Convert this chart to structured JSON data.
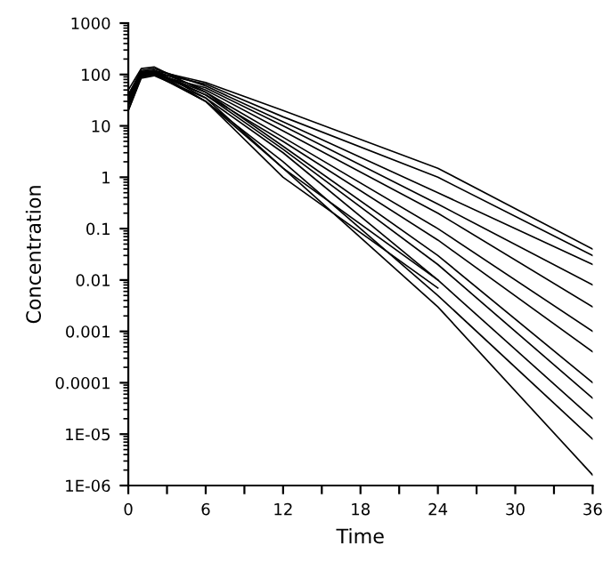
{
  "chart_data": {
    "type": "line",
    "xlabel": "Time",
    "ylabel": "Concentration",
    "log": "y",
    "grid": false,
    "legend": false,
    "marker": "none",
    "line_style": "solid",
    "xlim": [
      0,
      36
    ],
    "xticks": [
      0,
      {
        "value": 3,
        "label": null
      },
      6,
      {
        "value": 9,
        "label": null
      },
      12,
      {
        "value": 15,
        "label": null
      },
      18,
      {
        "value": 21,
        "label": null
      },
      24,
      {
        "value": 27,
        "label": null
      },
      30,
      {
        "value": 33,
        "label": null
      },
      36
    ],
    "ylim": [
      1e-06,
      1000
    ],
    "yticks": [
      {
        "value": 1e-06,
        "label": "1E-06"
      },
      {
        "value": 1e-05,
        "label": "1E-05"
      },
      {
        "value": 0.0001,
        "label": "0.0001"
      },
      {
        "value": 0.001,
        "label": "0.001"
      },
      {
        "value": 0.01,
        "label": "0.01"
      },
      {
        "value": 0.1,
        "label": "0.1"
      },
      1,
      10,
      100,
      1000
    ],
    "series": [
      {
        "color": "#000000",
        "x": [
          0,
          1,
          2,
          6,
          12,
          24,
          36
        ],
        "values": [
          30,
          110,
          120,
          70,
          20,
          1.5,
          0.04
        ]
      },
      {
        "color": "#000000",
        "x": [
          0,
          1,
          2,
          6,
          12,
          24,
          36
        ],
        "values": [
          25,
          100,
          110,
          65,
          15,
          1,
          0.03
        ]
      },
      {
        "color": "#000000",
        "x": [
          0,
          1,
          2,
          6,
          12,
          24,
          36
        ],
        "values": [
          40,
          120,
          130,
          60,
          12,
          0.5,
          0.02
        ]
      },
      {
        "color": "#000000",
        "x": [
          0,
          1,
          2,
          6,
          12,
          24,
          36
        ],
        "values": [
          20,
          90,
          100,
          55,
          10,
          0.3,
          0.008
        ]
      },
      {
        "color": "#000000",
        "x": [
          0,
          1,
          2,
          6,
          12,
          24,
          36
        ],
        "values": [
          35,
          110,
          120,
          50,
          8,
          0.2,
          0.003
        ]
      },
      {
        "color": "#000000",
        "x": [
          0,
          1,
          2,
          6,
          12,
          24,
          36
        ],
        "values": [
          30,
          100,
          110,
          45,
          6,
          0.1,
          0.001
        ]
      },
      {
        "color": "#000000",
        "x": [
          0,
          1,
          2,
          6,
          12,
          24,
          36
        ],
        "values": [
          25,
          95,
          105,
          40,
          5,
          0.06,
          0.0004
        ]
      },
      {
        "color": "#000000",
        "x": [
          0,
          1,
          2,
          6,
          12,
          24,
          36
        ],
        "values": [
          50,
          130,
          140,
          45,
          4,
          0.03,
          0.0001
        ]
      },
      {
        "color": "#000000",
        "x": [
          0,
          1,
          2,
          6,
          12,
          24,
          36
        ],
        "values": [
          30,
          105,
          115,
          40,
          3.5,
          0.02,
          5e-05
        ]
      },
      {
        "color": "#000000",
        "x": [
          0,
          1,
          2,
          6,
          12,
          24,
          36
        ],
        "values": [
          20,
          85,
          95,
          35,
          3,
          0.01,
          2e-05
        ]
      },
      {
        "color": "#000000",
        "x": [
          0,
          1,
          2,
          6,
          12,
          24,
          36
        ],
        "values": [
          35,
          110,
          115,
          30,
          2,
          0.005,
          8e-06
        ]
      },
      {
        "color": "#000000",
        "x": [
          0,
          1,
          2,
          6,
          12,
          24,
          36
        ],
        "values": [
          30,
          100,
          105,
          30,
          1.5,
          0.003,
          1.6e-06
        ]
      },
      {
        "color": "#000000",
        "x": [
          0,
          1,
          2,
          6,
          12,
          24
        ],
        "values": [
          25,
          90,
          100,
          30,
          1,
          0.007
        ]
      },
      {
        "color": "#000000",
        "x": [
          0,
          1,
          2,
          6,
          12,
          24
        ],
        "values": [
          40,
          115,
          120,
          35,
          1.5,
          0.01
        ]
      }
    ]
  }
}
